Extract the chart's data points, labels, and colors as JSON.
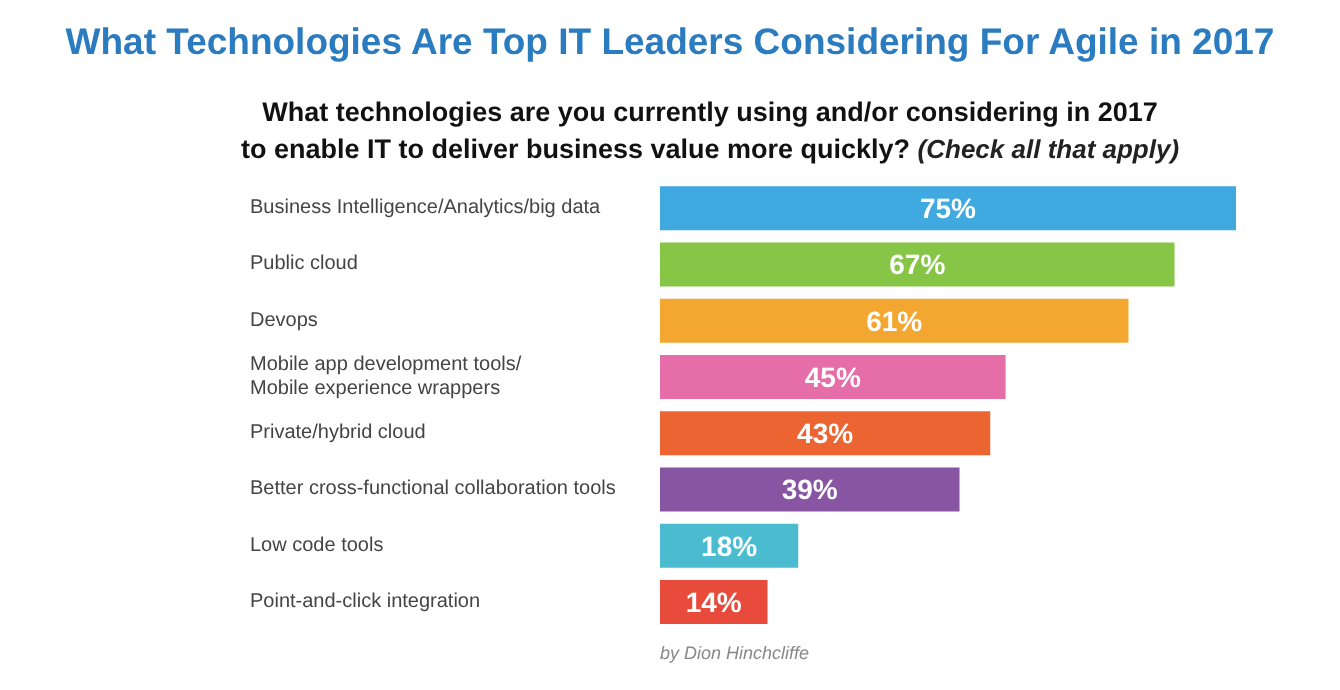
{
  "chart_data": {
    "type": "bar",
    "orientation": "horizontal",
    "title": "What Technologies Are Top IT Leaders Considering For Agile in 2017",
    "subtitle": "What technologies are you currently using and/or considering in 2017\nto enable IT to deliver business value more quickly? (Check all that apply)",
    "categories": [
      "Business Intelligence/Analytics/big data",
      "Public cloud",
      "Devops",
      "Mobile app development tools/\nMobile experience wrappers",
      "Private/hybrid cloud",
      "Better cross-functional collaboration tools",
      "Low code tools",
      "Point-and-click integration"
    ],
    "values": [
      75,
      67,
      61,
      45,
      43,
      39,
      18,
      14
    ],
    "colors": [
      "#3fa9e0",
      "#86c546",
      "#f3a731",
      "#e56ea8",
      "#ec6431",
      "#8855a3",
      "#4bbccf",
      "#e84a3b"
    ],
    "value_labels": [
      "75%",
      "67%",
      "61%",
      "45%",
      "43%",
      "39%",
      "18%",
      "14%"
    ],
    "relative": false,
    "annotations": [
      "by Dion Hinchcliffe"
    ]
  }
}
